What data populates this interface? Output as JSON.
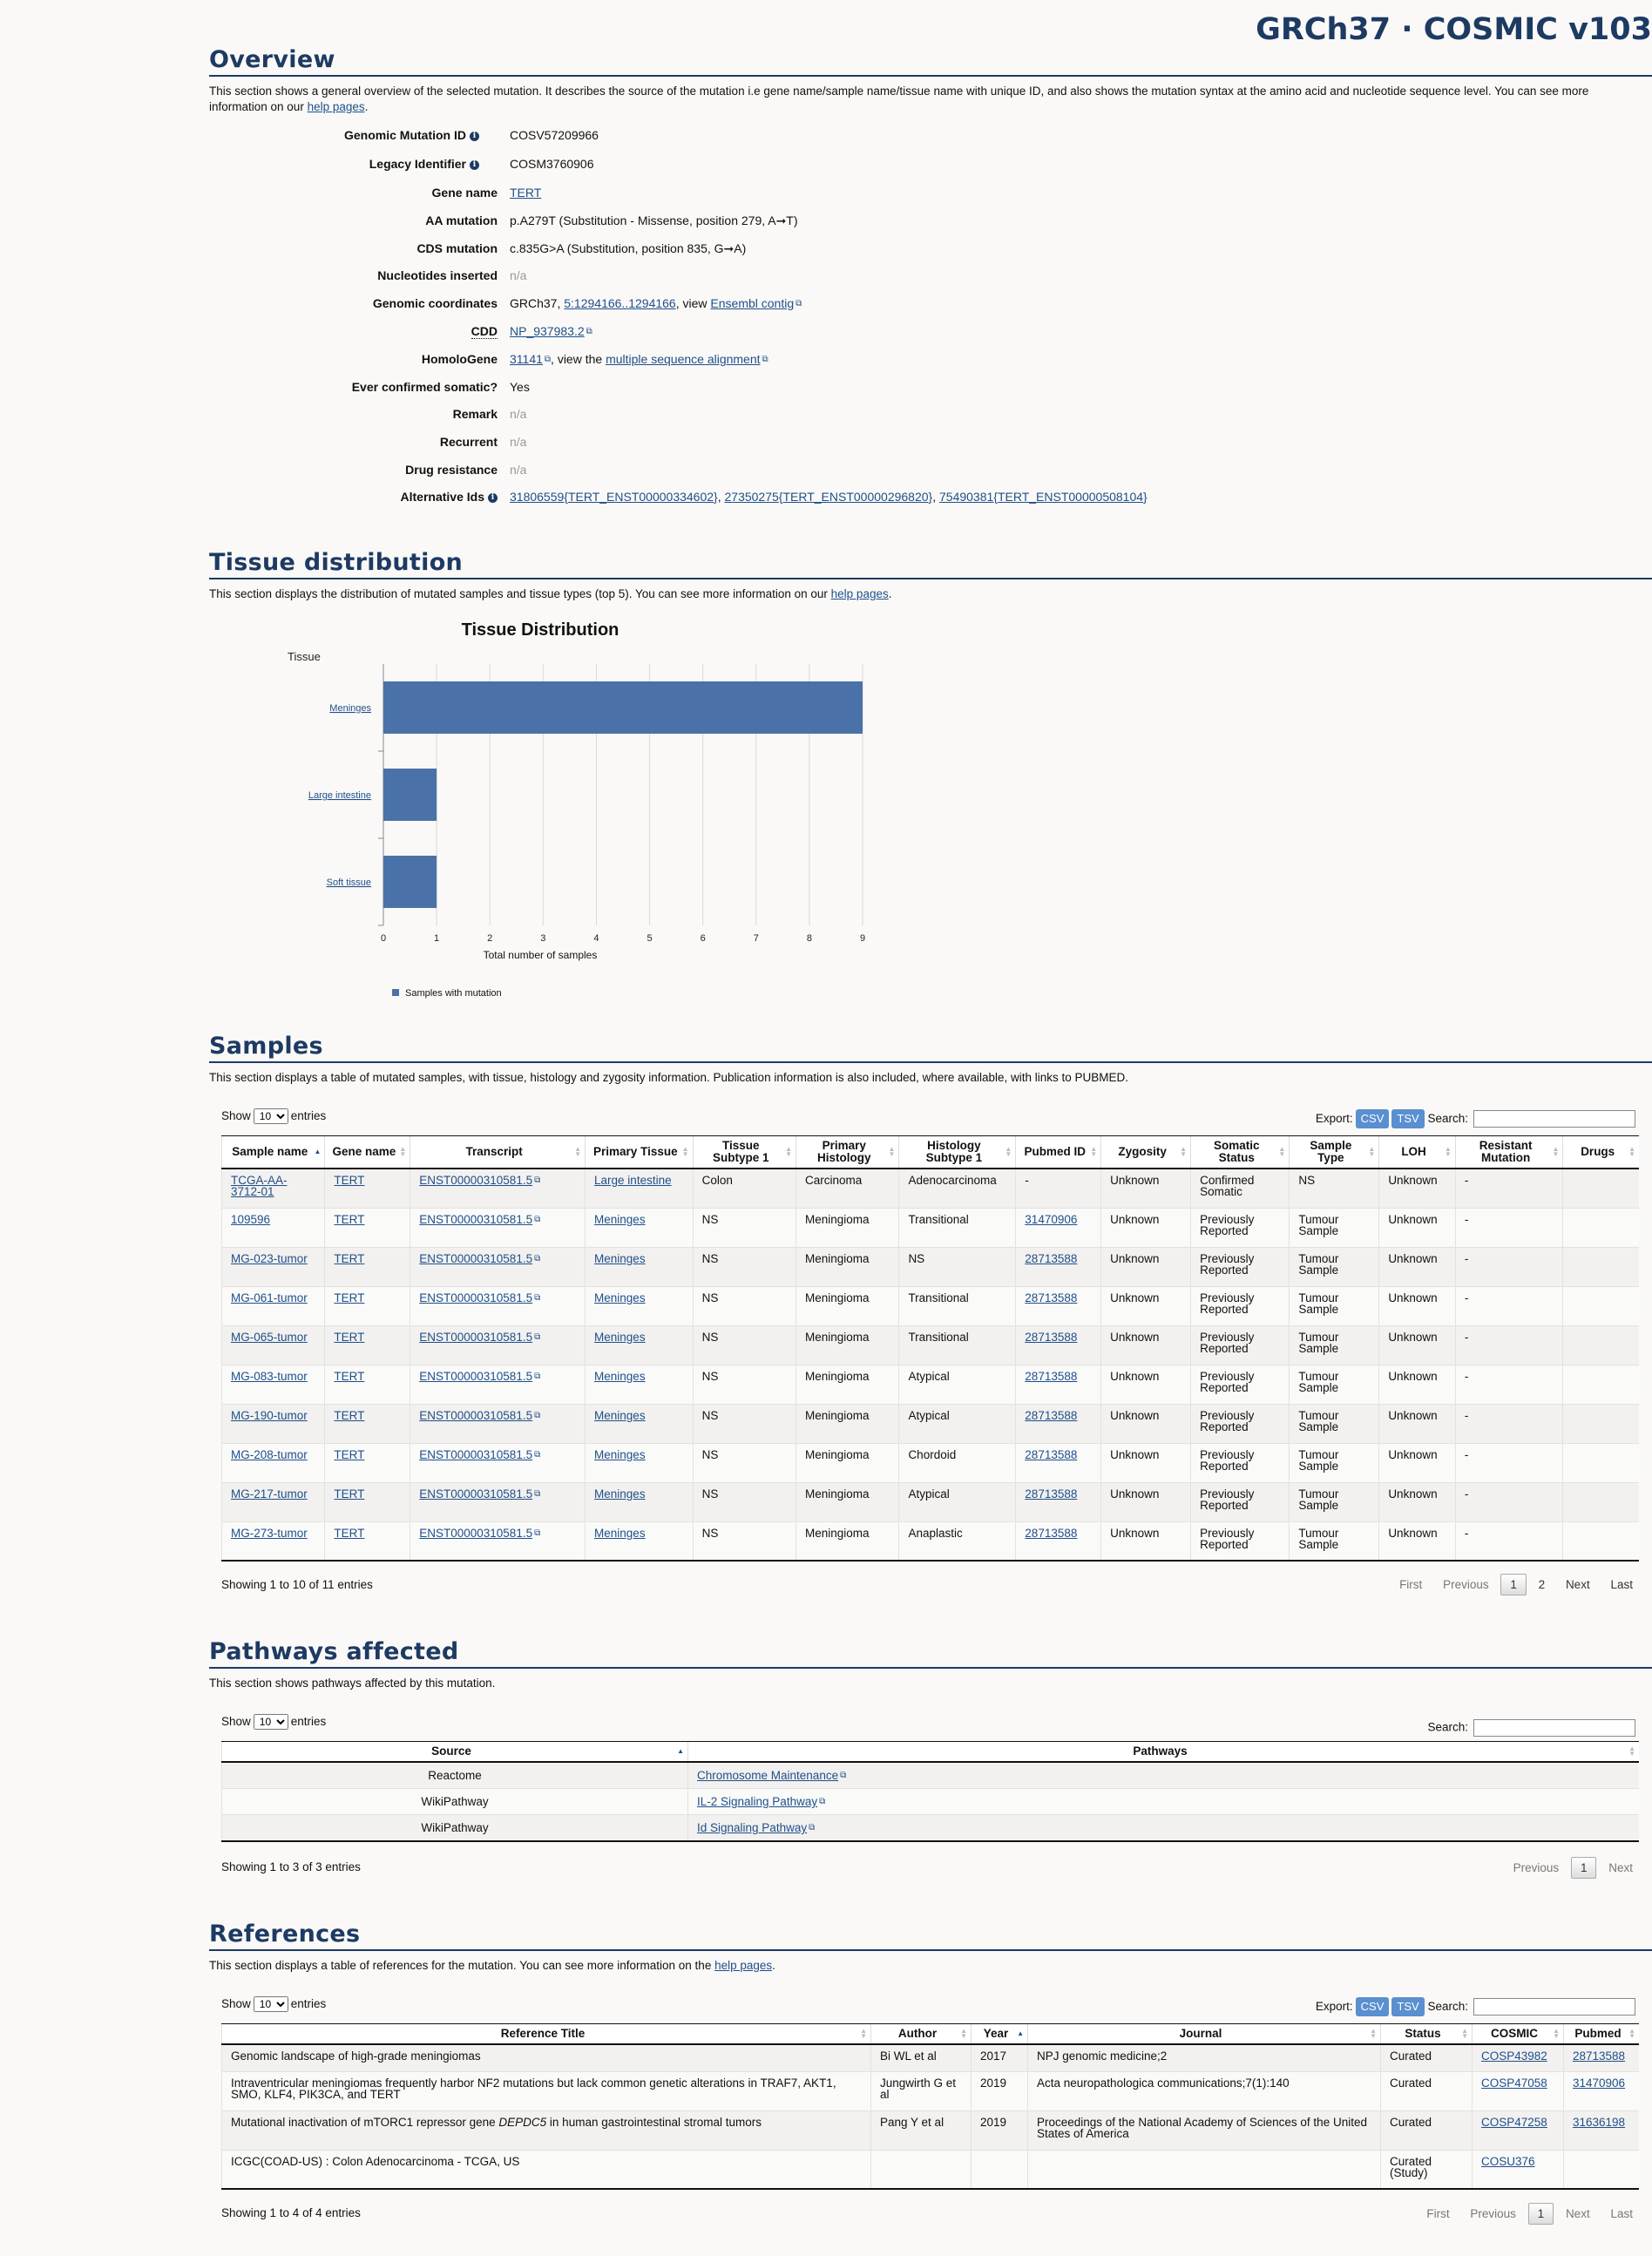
{
  "banner": "GRCh37 · COSMIC v103",
  "overview": {
    "title": "Overview",
    "description": "This section shows a general overview of the selected mutation. It describes the source of the mutation i.e gene name/sample name/tissue name with unique ID, and also shows the mutation syntax at the amino acid and nucleotide sequence level. You can see more information on our",
    "help_link": "help pages",
    "fields": {
      "genomic_mutation_id": {
        "label": "Genomic Mutation ID",
        "value": "COSV57209966"
      },
      "legacy_identifier": {
        "label": "Legacy Identifier",
        "value": "COSM3760906"
      },
      "gene_name": {
        "label": "Gene name",
        "value": "TERT"
      },
      "aa_mutation": {
        "label": "AA mutation",
        "value": "p.A279T (Substitution - Missense, position 279, A➞T)"
      },
      "cds_mutation": {
        "label": "CDS mutation",
        "value": "c.835G>A (Substitution, position 835, G➞A)"
      },
      "nucleotides_inserted": {
        "label": "Nucleotides inserted",
        "value": "n/a"
      },
      "genomic_coordinates": {
        "label": "Genomic coordinates",
        "prefix": "GRCh37,",
        "coord_link": "5:1294166..1294166",
        "mid": ", view",
        "contig_link": "Ensembl contig"
      },
      "cdd": {
        "label": "CDD",
        "value": "NP_937983.2"
      },
      "homologene": {
        "label": "HomoloGene",
        "value": "31141",
        "mid": ", view the",
        "msa_link": "multiple sequence alignment"
      },
      "ever_confirmed_somatic": {
        "label": "Ever confirmed somatic?",
        "value": "Yes"
      },
      "remark": {
        "label": "Remark",
        "value": "n/a"
      },
      "recurrent": {
        "label": "Recurrent",
        "value": "n/a"
      },
      "drug_resistance": {
        "label": "Drug resistance",
        "value": "n/a"
      },
      "alternative_ids": {
        "label": "Alternative Ids",
        "ids": [
          "31806559{TERT_ENST00000334602}",
          "27350275{TERT_ENST00000296820}",
          "75490381{TERT_ENST00000508104}"
        ]
      }
    }
  },
  "tissue": {
    "title": "Tissue distribution",
    "description": "This section displays the distribution of mutated samples and tissue types (top 5). You can see more information on our",
    "help_link": "help pages"
  },
  "chart_data": {
    "type": "bar",
    "orientation": "horizontal",
    "title": "Tissue Distribution",
    "ylabel": "Tissue",
    "xlabel": "Total number of samples",
    "categories": [
      "Meninges",
      "Large intestine",
      "Soft tissue"
    ],
    "series": [
      {
        "name": "Samples with mutation",
        "values": [
          9,
          1,
          1
        ],
        "color": "#4a72a8"
      }
    ],
    "xlim": [
      0,
      9
    ],
    "xticks": [
      "0",
      "1",
      "2",
      "3",
      "4",
      "5",
      "6",
      "7",
      "8",
      "9"
    ],
    "grid": true,
    "legend": "bottom-left"
  },
  "samples": {
    "title": "Samples",
    "description": "This section displays a table of mutated samples, with tissue, histology and zygosity information. Publication information is also included, where available, with links to PUBMED.",
    "show_label": "Show",
    "entries_label": "entries",
    "length_value": "10",
    "export_label": "Export:",
    "csv": "CSV",
    "tsv": "TSV",
    "search_label": "Search:",
    "columns": [
      "Sample name",
      "Gene name",
      "Transcript",
      "Primary Tissue",
      "Tissue Subtype 1",
      "Primary Histology",
      "Histology Subtype 1",
      "Pubmed ID",
      "Zygosity",
      "Somatic Status",
      "Sample Type",
      "LOH",
      "Resistant Mutation",
      "Drugs"
    ],
    "rows": [
      [
        "TCGA-AA-3712-01",
        "TERT",
        "ENST00000310581.5",
        "Large intestine",
        "Colon",
        "Carcinoma",
        "Adenocarcinoma",
        "-",
        "Unknown",
        "Confirmed Somatic",
        "NS",
        "Unknown",
        "-",
        ""
      ],
      [
        "109596",
        "TERT",
        "ENST00000310581.5",
        "Meninges",
        "NS",
        "Meningioma",
        "Transitional",
        "31470906",
        "Unknown",
        "Previously Reported",
        "Tumour Sample",
        "Unknown",
        "-",
        ""
      ],
      [
        "MG-023-tumor",
        "TERT",
        "ENST00000310581.5",
        "Meninges",
        "NS",
        "Meningioma",
        "NS",
        "28713588",
        "Unknown",
        "Previously Reported",
        "Tumour Sample",
        "Unknown",
        "-",
        ""
      ],
      [
        "MG-061-tumor",
        "TERT",
        "ENST00000310581.5",
        "Meninges",
        "NS",
        "Meningioma",
        "Transitional",
        "28713588",
        "Unknown",
        "Previously Reported",
        "Tumour Sample",
        "Unknown",
        "-",
        ""
      ],
      [
        "MG-065-tumor",
        "TERT",
        "ENST00000310581.5",
        "Meninges",
        "NS",
        "Meningioma",
        "Transitional",
        "28713588",
        "Unknown",
        "Previously Reported",
        "Tumour Sample",
        "Unknown",
        "-",
        ""
      ],
      [
        "MG-083-tumor",
        "TERT",
        "ENST00000310581.5",
        "Meninges",
        "NS",
        "Meningioma",
        "Atypical",
        "28713588",
        "Unknown",
        "Previously Reported",
        "Tumour Sample",
        "Unknown",
        "-",
        ""
      ],
      [
        "MG-190-tumor",
        "TERT",
        "ENST00000310581.5",
        "Meninges",
        "NS",
        "Meningioma",
        "Atypical",
        "28713588",
        "Unknown",
        "Previously Reported",
        "Tumour Sample",
        "Unknown",
        "-",
        ""
      ],
      [
        "MG-208-tumor",
        "TERT",
        "ENST00000310581.5",
        "Meninges",
        "NS",
        "Meningioma",
        "Chordoid",
        "28713588",
        "Unknown",
        "Previously Reported",
        "Tumour Sample",
        "Unknown",
        "-",
        ""
      ],
      [
        "MG-217-tumor",
        "TERT",
        "ENST00000310581.5",
        "Meninges",
        "NS",
        "Meningioma",
        "Atypical",
        "28713588",
        "Unknown",
        "Previously Reported",
        "Tumour Sample",
        "Unknown",
        "-",
        ""
      ],
      [
        "MG-273-tumor",
        "TERT",
        "ENST00000310581.5",
        "Meninges",
        "NS",
        "Meningioma",
        "Anaplastic",
        "28713588",
        "Unknown",
        "Previously Reported",
        "Tumour Sample",
        "Unknown",
        "-",
        ""
      ]
    ],
    "info": "Showing 1 to 10 of 11 entries",
    "pager": {
      "first": "First",
      "previous": "Previous",
      "pages": [
        "1",
        "2"
      ],
      "next": "Next",
      "last": "Last"
    }
  },
  "pathways": {
    "title": "Pathways affected",
    "description": "This section shows pathways affected by this mutation.",
    "show_label": "Show",
    "entries_label": "entries",
    "length_value": "10",
    "search_label": "Search:",
    "columns": [
      "Source",
      "Pathways"
    ],
    "rows": [
      [
        "Reactome",
        "Chromosome Maintenance"
      ],
      [
        "WikiPathway",
        "IL-2 Signaling Pathway"
      ],
      [
        "WikiPathway",
        "Id Signaling Pathway"
      ]
    ],
    "info": "Showing 1 to 3 of 3 entries",
    "pager": {
      "previous": "Previous",
      "pages": [
        "1"
      ],
      "next": "Next"
    }
  },
  "references": {
    "title": "References",
    "description": "This section displays a table of references for the mutation. You can see more information on the",
    "help_link": "help pages",
    "show_label": "Show",
    "entries_label": "entries",
    "length_value": "10",
    "export_label": "Export:",
    "csv": "CSV",
    "tsv": "TSV",
    "search_label": "Search:",
    "columns": [
      "Reference Title",
      "Author",
      "Year",
      "Journal",
      "Status",
      "COSMIC",
      "Pubmed"
    ],
    "rows": [
      {
        "title": "Genomic landscape of high-grade meningiomas",
        "author": "Bi WL et al",
        "year": "2017",
        "journal": "NPJ genomic medicine;2",
        "status": "Curated",
        "cosmic": "COSP43982",
        "pubmed": "28713588"
      },
      {
        "title": "Intraventricular meningiomas frequently harbor NF2 mutations but lack common genetic alterations in TRAF7, AKT1, SMO, KLF4, PIK3CA, and TERT",
        "author": "Jungwirth G et al",
        "year": "2019",
        "journal": "Acta neuropathologica communications;7(1):140",
        "status": "Curated",
        "cosmic": "COSP47058",
        "pubmed": "31470906"
      },
      {
        "title_pre": "Mutational inactivation of mTORC1 repressor gene ",
        "title_em": "DEPDC5",
        "title_post": " in human gastrointestinal stromal tumors",
        "author": "Pang Y et al",
        "year": "2019",
        "journal": "Proceedings of the National Academy of Sciences of the United States of America",
        "status": "Curated",
        "cosmic": "COSP47258",
        "pubmed": "31636198"
      },
      {
        "title": "ICGC(COAD-US) : Colon Adenocarcinoma - TCGA, US",
        "author": "",
        "year": "",
        "journal": "",
        "status": "Curated (Study)",
        "cosmic": "COSU376",
        "pubmed": ""
      }
    ],
    "info": "Showing 1 to 4 of 4 entries",
    "pager": {
      "first": "First",
      "previous": "Previous",
      "pages": [
        "1"
      ],
      "next": "Next",
      "last": "Last"
    }
  }
}
